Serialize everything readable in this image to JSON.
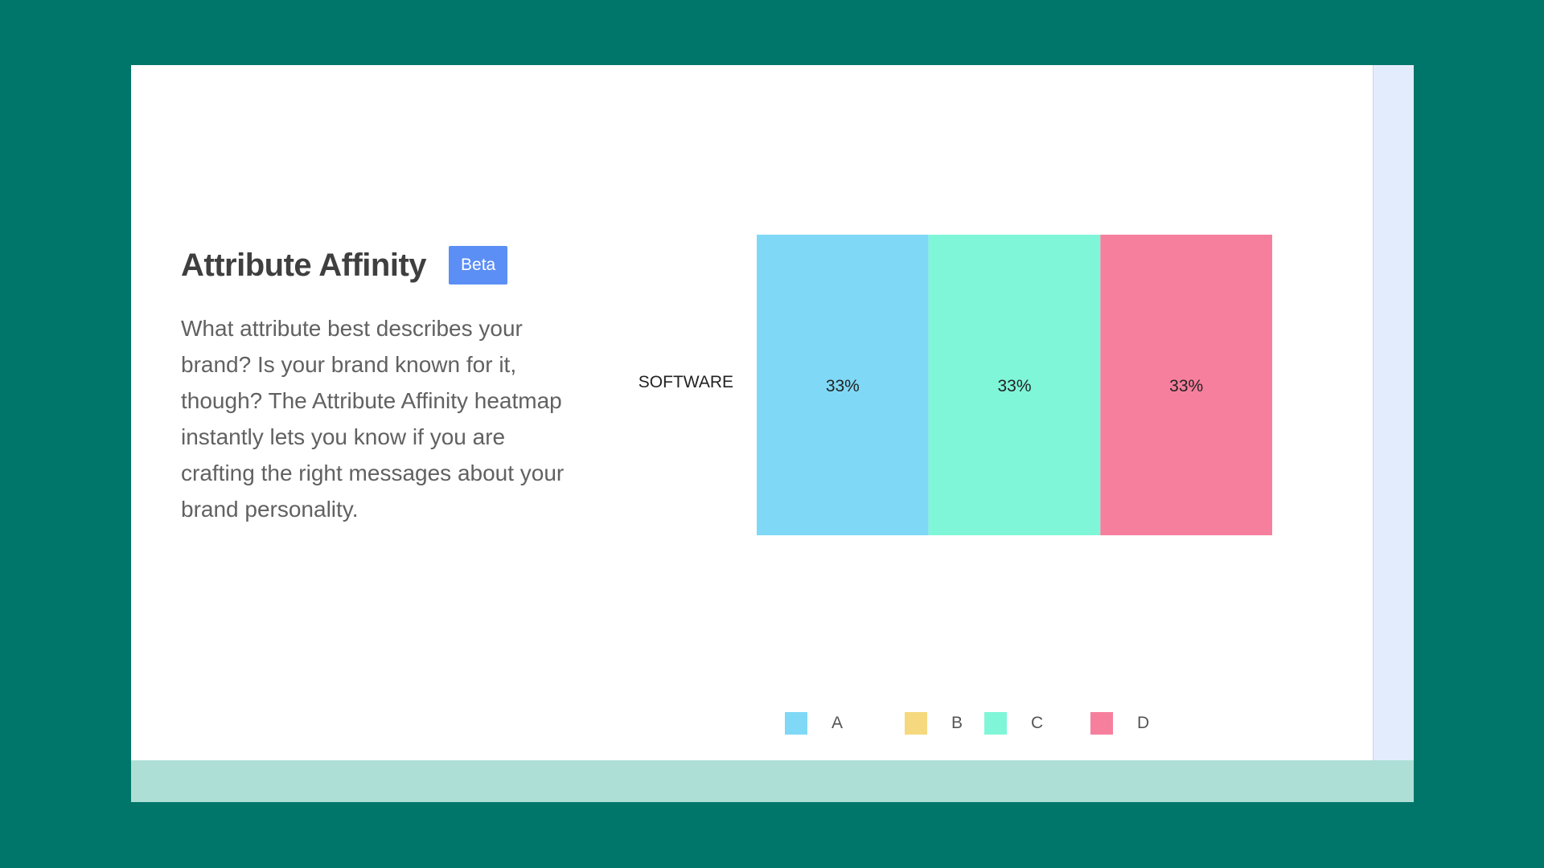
{
  "heading": {
    "title": "Attribute Affinity",
    "badge": "Beta"
  },
  "description": "What attribute best describes your brand? Is your brand known for it, though? The Attribute Affinity heatmap instantly lets you know if you are crafting the right messages about your brand personality.",
  "chart_data": {
    "type": "bar",
    "orientation": "horizontal-stacked",
    "categories": [
      "SOFTWARE"
    ],
    "series": [
      {
        "name": "A",
        "values": [
          33
        ],
        "label": "33%",
        "color": "#7fd8f6"
      },
      {
        "name": "B",
        "values": [
          0
        ],
        "label": "",
        "color": "#f6d97f"
      },
      {
        "name": "C",
        "values": [
          33
        ],
        "label": "33%",
        "color": "#7ff6d8"
      },
      {
        "name": "D",
        "values": [
          33
        ],
        "label": "33%",
        "color": "#f67f9d"
      }
    ],
    "legend": "bottom"
  },
  "colors": {
    "background": "#00766a",
    "accent": "#5c8ff5"
  }
}
